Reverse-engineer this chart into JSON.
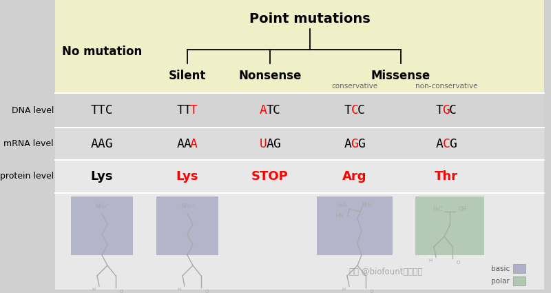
{
  "title": "Point mutations",
  "bg_outer": "#d0d0d0",
  "bg_table": "#e2e2e2",
  "bg_yellow": "#f0f0c8",
  "bg_row_dna": "#d8d8d8",
  "bg_row_mrna": "#e0e0e0",
  "bg_row_prot": "#e8e8e8",
  "basic_color": "#9999bb",
  "polar_color": "#99bb99",
  "dna_texts": [
    "TTC",
    "TTT",
    "ATC",
    "TCC",
    "TGC"
  ],
  "dna_colored_idx": [
    -1,
    2,
    0,
    1,
    1
  ],
  "mrna_texts": [
    "AAG",
    "AAA",
    "UAG",
    "AGG",
    "ACG"
  ],
  "mrna_colored_idx": [
    -1,
    2,
    0,
    1,
    1
  ],
  "prot_texts": [
    "Lys",
    "Lys",
    "STOP",
    "Arg",
    "Thr"
  ],
  "prot_colors": [
    "black",
    "red",
    "red",
    "red",
    "red"
  ],
  "watermark": "知乎 @biofount科研试剂",
  "legend_basic": "basic",
  "legend_polar": "polar"
}
